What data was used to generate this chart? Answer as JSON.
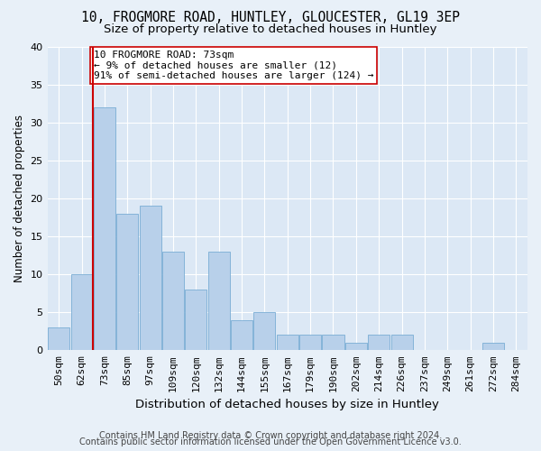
{
  "title_line1": "10, FROGMORE ROAD, HUNTLEY, GLOUCESTER, GL19 3EP",
  "title_line2": "Size of property relative to detached houses in Huntley",
  "xlabel": "Distribution of detached houses by size in Huntley",
  "ylabel": "Number of detached properties",
  "categories": [
    "50sqm",
    "62sqm",
    "73sqm",
    "85sqm",
    "97sqm",
    "109sqm",
    "120sqm",
    "132sqm",
    "144sqm",
    "155sqm",
    "167sqm",
    "179sqm",
    "190sqm",
    "202sqm",
    "214sqm",
    "226sqm",
    "237sqm",
    "249sqm",
    "261sqm",
    "272sqm",
    "284sqm"
  ],
  "values": [
    3,
    10,
    32,
    18,
    19,
    13,
    8,
    13,
    4,
    5,
    2,
    2,
    2,
    1,
    2,
    2,
    0,
    0,
    0,
    1,
    0
  ],
  "bar_color": "#b8d0ea",
  "bar_edge_color": "#7aadd4",
  "highlight_index": 2,
  "highlight_line_color": "#cc0000",
  "annotation_text": "10 FROGMORE ROAD: 73sqm\n← 9% of detached houses are smaller (12)\n91% of semi-detached houses are larger (124) →",
  "annotation_box_color": "#ffffff",
  "annotation_box_edge_color": "#cc0000",
  "ylim": [
    0,
    40
  ],
  "yticks": [
    0,
    5,
    10,
    15,
    20,
    25,
    30,
    35,
    40
  ],
  "footer_line1": "Contains HM Land Registry data © Crown copyright and database right 2024.",
  "footer_line2": "Contains public sector information licensed under the Open Government Licence v3.0.",
  "background_color": "#e8f0f8",
  "plot_background_color": "#dce8f5",
  "grid_color": "#ffffff",
  "title_fontsize": 10.5,
  "subtitle_fontsize": 9.5,
  "ylabel_fontsize": 8.5,
  "xlabel_fontsize": 9.5,
  "tick_fontsize": 8,
  "annotation_fontsize": 8,
  "footer_fontsize": 7
}
